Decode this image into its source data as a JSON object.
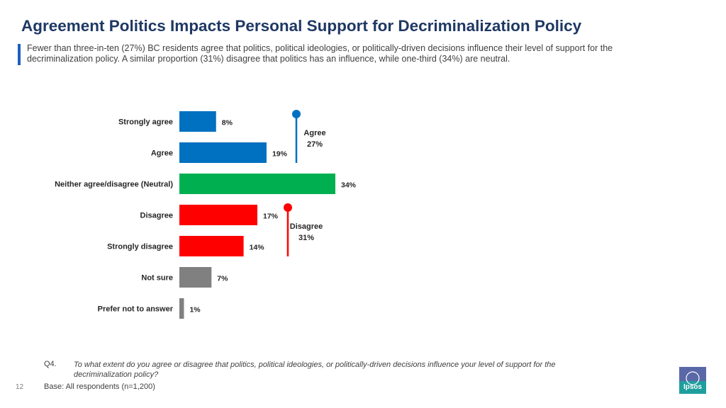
{
  "page": {
    "title": "Agreement Politics Impacts Personal Support for Decriminalization Policy",
    "subtitle": "Fewer than three-in-ten (27%) BC residents agree that politics, political ideologies, or politically-driven decisions influence their level of support for the decriminalization policy. A similar proportion (31%) disagree that politics has an influence, while one-third (34%) are neutral.",
    "question_label": "Q4.",
    "question_text": "To what extent do you agree or disagree that politics, political ideologies, or politically-driven decisions influence your level of support for the decriminalization policy?",
    "base": "Base: All respondents (n=1,200)",
    "page_number": "12",
    "logo_text": "Ipsos"
  },
  "chart_data": {
    "type": "bar",
    "orientation": "horizontal",
    "categories": [
      "Strongly agree",
      "Agree",
      "Neither agree/disagree (Neutral)",
      "Disagree",
      "Strongly disagree",
      "Not sure",
      "Prefer not to answer"
    ],
    "values": [
      8,
      19,
      34,
      17,
      14,
      7,
      1
    ],
    "value_labels": [
      "8%",
      "19%",
      "34%",
      "17%",
      "14%",
      "7%",
      "1%"
    ],
    "colors": [
      "#0070c0",
      "#0070c0",
      "#00b050",
      "#ff0000",
      "#ff0000",
      "#808080",
      "#808080"
    ],
    "xlim": [
      0,
      34
    ],
    "unit": "%",
    "groups": [
      {
        "name": "Agree",
        "value_label": "27%",
        "value": 27,
        "color": "#0070c0",
        "from": 0,
        "to": 1
      },
      {
        "name": "Disagree",
        "value_label": "31%",
        "value": 31,
        "color": "#ff0000",
        "from": 3,
        "to": 4
      }
    ]
  }
}
